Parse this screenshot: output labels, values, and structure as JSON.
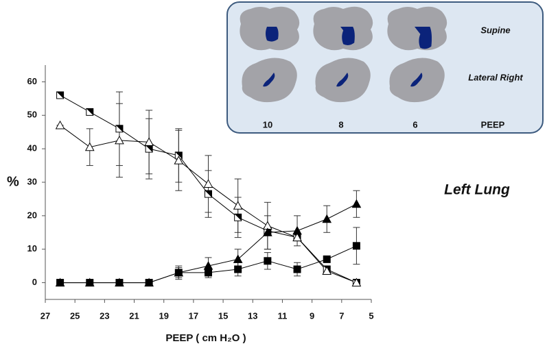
{
  "chart_data": {
    "type": "line",
    "y_label": "%",
    "x_label": "PEEP ( cm H₂O )",
    "annotation": "Left Lung",
    "x": [
      26,
      24,
      22,
      20,
      18,
      16,
      14,
      12,
      10,
      8,
      6
    ],
    "xlim": [
      27,
      5
    ],
    "xticks": [
      27,
      25,
      23,
      21,
      19,
      17,
      15,
      13,
      11,
      9,
      7,
      5
    ],
    "ylim": [
      -5,
      65
    ],
    "yticks": [
      0,
      10,
      20,
      30,
      40,
      50,
      60
    ],
    "series": [
      {
        "marker": "half-square",
        "color": "#000000",
        "values": [
          56,
          51,
          46,
          40,
          38,
          26.5,
          19.5,
          15.5,
          13.5,
          4,
          0
        ],
        "error": [
          0,
          0,
          11,
          9,
          8,
          7,
          6,
          0,
          0,
          0,
          0
        ]
      },
      {
        "marker": "open-triangle",
        "color": "#000000",
        "values": [
          47,
          40.5,
          42.5,
          42,
          36.5,
          29.5,
          23,
          17,
          13.5,
          3.5,
          0
        ],
        "error": [
          0,
          5.5,
          11,
          9.5,
          9,
          8.5,
          8,
          7,
          0,
          0,
          0
        ]
      },
      {
        "marker": "filled-triangle",
        "color": "#000000",
        "values": [
          0,
          0,
          0,
          0,
          3,
          5,
          7,
          15,
          15.5,
          19,
          23.5
        ],
        "error": [
          0,
          0,
          0,
          0,
          2,
          2.5,
          3,
          5,
          4.5,
          4,
          4
        ]
      },
      {
        "marker": "filled-square",
        "color": "#000000",
        "values": [
          0,
          0,
          0,
          0,
          3,
          3,
          4,
          6.5,
          4,
          7,
          11
        ],
        "error": [
          0,
          0,
          0,
          0,
          1.5,
          1.5,
          2,
          2.5,
          2,
          0,
          5.5
        ]
      }
    ]
  },
  "inset": {
    "row_labels": [
      "Supine",
      "Lateral Right"
    ],
    "column_labels": [
      "10",
      "8",
      "6"
    ],
    "axis_label": "PEEP"
  }
}
